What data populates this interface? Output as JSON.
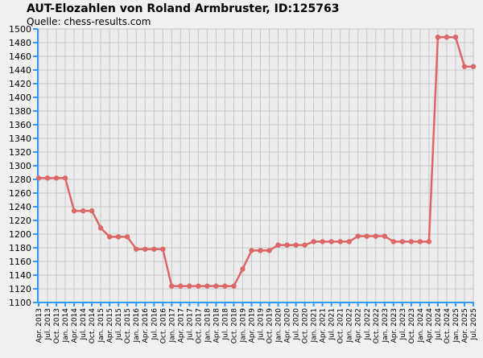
{
  "header": {
    "title": "AUT-Elozahlen von Roland Armbruster, ID:125763",
    "subtitle": "Quelle: chess-results.com"
  },
  "chart_data": {
    "type": "line",
    "title": "AUT-Elozahlen von Roland Armbruster, ID:125763",
    "subtitle": "Quelle: chess-results.com",
    "xlabel": "",
    "ylabel": "",
    "ylim": [
      1100,
      1500
    ],
    "ytick_step": 20,
    "grid": true,
    "categories": [
      "Apr. 2013",
      "Jul. 2013",
      "Oct. 2013",
      "Jan. 2014",
      "Apr. 2014",
      "Jul. 2014",
      "Oct. 2014",
      "Jan. 2015",
      "Apr. 2015",
      "Jul. 2015",
      "Oct. 2015",
      "Jan. 2016",
      "Apr. 2016",
      "Jul. 2016",
      "Oct. 2016",
      "Jan. 2017",
      "Apr. 2017",
      "Jul. 2017",
      "Oct. 2017",
      "Jan. 2018",
      "Apr. 2018",
      "Jul. 2018",
      "Oct. 2018",
      "Jan. 2019",
      "Apr. 2019",
      "Jul. 2019",
      "Oct. 2019",
      "Jan. 2020",
      "Apr. 2020",
      "Jul. 2020",
      "Oct. 2020",
      "Jan. 2021",
      "Apr. 2021",
      "Jul. 2021",
      "Oct. 2021",
      "Jan. 2022",
      "Apr. 2022",
      "Jul. 2022",
      "Oct. 2022",
      "Jan. 2023",
      "Apr. 2023",
      "Jul. 2023",
      "Oct. 2023",
      "Jan. 2024",
      "Apr. 2024",
      "Jul. 2024",
      "Oct. 2024",
      "Jan. 2025",
      "Apr. 2025",
      "Jul. 2025"
    ],
    "values": [
      1282,
      1282,
      1282,
      1282,
      1234,
      1234,
      1234,
      1209,
      1196,
      1196,
      1196,
      1178,
      1178,
      1178,
      1178,
      1124,
      1124,
      1124,
      1124,
      1124,
      1124,
      1124,
      1124,
      1149,
      1176,
      1176,
      1176,
      1184,
      1184,
      1184,
      1184,
      1189,
      1189,
      1189,
      1189,
      1189,
      1197,
      1197,
      1197,
      1197,
      1189,
      1189,
      1189,
      1189,
      1189,
      1488,
      1488,
      1488,
      1445,
      1445
    ],
    "colors": {
      "line": "#dd6666",
      "grid": "#c8c8c8",
      "axis": "#3399ff"
    }
  }
}
